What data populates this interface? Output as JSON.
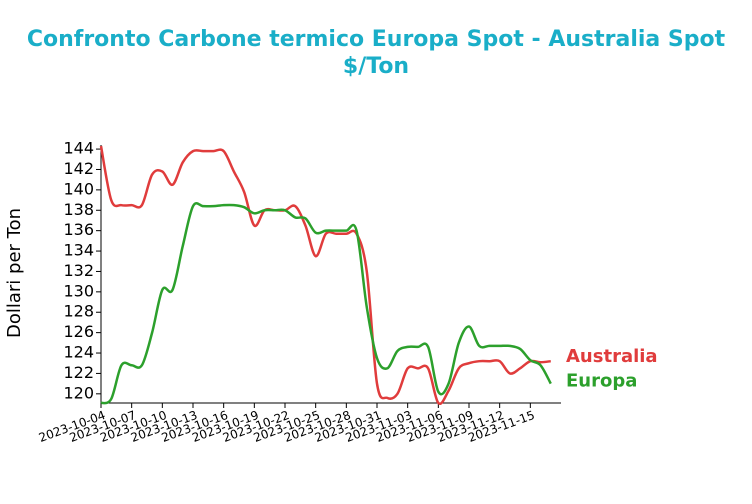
{
  "chart_data": {
    "type": "line",
    "title": "Confronto Carbone termico Europa Spot - Australia Spot",
    "subtitle": "$/Ton",
    "y_label": "Dollari per Ton",
    "x": [
      "2023-10-04",
      "2023-10-05",
      "2023-10-06",
      "2023-10-07",
      "2023-10-08",
      "2023-10-09",
      "2023-10-10",
      "2023-10-11",
      "2023-10-12",
      "2023-10-13",
      "2023-10-14",
      "2023-10-15",
      "2023-10-16",
      "2023-10-17",
      "2023-10-18",
      "2023-10-19",
      "2023-10-20",
      "2023-10-21",
      "2023-10-22",
      "2023-10-23",
      "2023-10-24",
      "2023-10-25",
      "2023-10-26",
      "2023-10-27",
      "2023-10-28",
      "2023-10-29",
      "2023-10-30",
      "2023-10-31",
      "2023-11-01",
      "2023-11-02",
      "2023-11-03",
      "2023-11-04",
      "2023-11-05",
      "2023-11-06",
      "2023-11-07",
      "2023-11-08",
      "2023-11-09",
      "2023-11-10",
      "2023-11-11",
      "2023-11-12",
      "2023-11-13",
      "2023-11-14",
      "2023-11-15",
      "2023-11-16",
      "2023-11-17"
    ],
    "series": [
      {
        "name": "Australia",
        "color": "#e03c3c",
        "values": [
          144.3,
          139,
          138.5,
          138.5,
          138.5,
          141.5,
          141.8,
          140.5,
          142.7,
          143.8,
          143.8,
          143.8,
          143.8,
          141.8,
          139.8,
          136.5,
          138,
          138,
          138,
          138.4,
          136.5,
          133.5,
          135.7,
          135.7,
          135.7,
          135.7,
          132,
          121,
          119.6,
          120,
          122.5,
          122.5,
          122.5,
          119.1,
          120.3,
          122.5,
          123,
          123.2,
          123.2,
          123.2,
          122,
          122.5,
          123.2,
          123.1,
          123.2
        ]
      },
      {
        "name": "Europa",
        "color": "#2ca02c",
        "values": [
          119.1,
          119.5,
          122.8,
          122.8,
          122.8,
          126,
          130.2,
          130.2,
          134.5,
          138.4,
          138.4,
          138.4,
          138.5,
          138.5,
          138.3,
          137.7,
          138,
          138,
          138,
          137.3,
          137.2,
          135.8,
          136,
          136,
          136,
          136,
          128.5,
          123.5,
          122.5,
          124.2,
          124.6,
          124.6,
          124.6,
          120.2,
          121,
          125,
          126.6,
          124.7,
          124.7,
          124.7,
          124.7,
          124.4,
          123.3,
          122.8,
          121
        ]
      }
    ],
    "xlim": [
      "2023-10-04",
      "2023-11-18"
    ],
    "xticks": [
      "2023-10-04",
      "2023-10-07",
      "2023-10-10",
      "2023-10-13",
      "2023-10-16",
      "2023-10-19",
      "2023-10-22",
      "2023-10-25",
      "2023-10-28",
      "2023-10-31",
      "2023-11-03",
      "2023-11-06",
      "2023-11-09",
      "2023-11-12",
      "2023-11-15"
    ],
    "ylim": [
      119.1,
      144.4
    ],
    "yticks": [
      120,
      122,
      124,
      126,
      128,
      130,
      132,
      134,
      136,
      138,
      140,
      142,
      144
    ]
  }
}
